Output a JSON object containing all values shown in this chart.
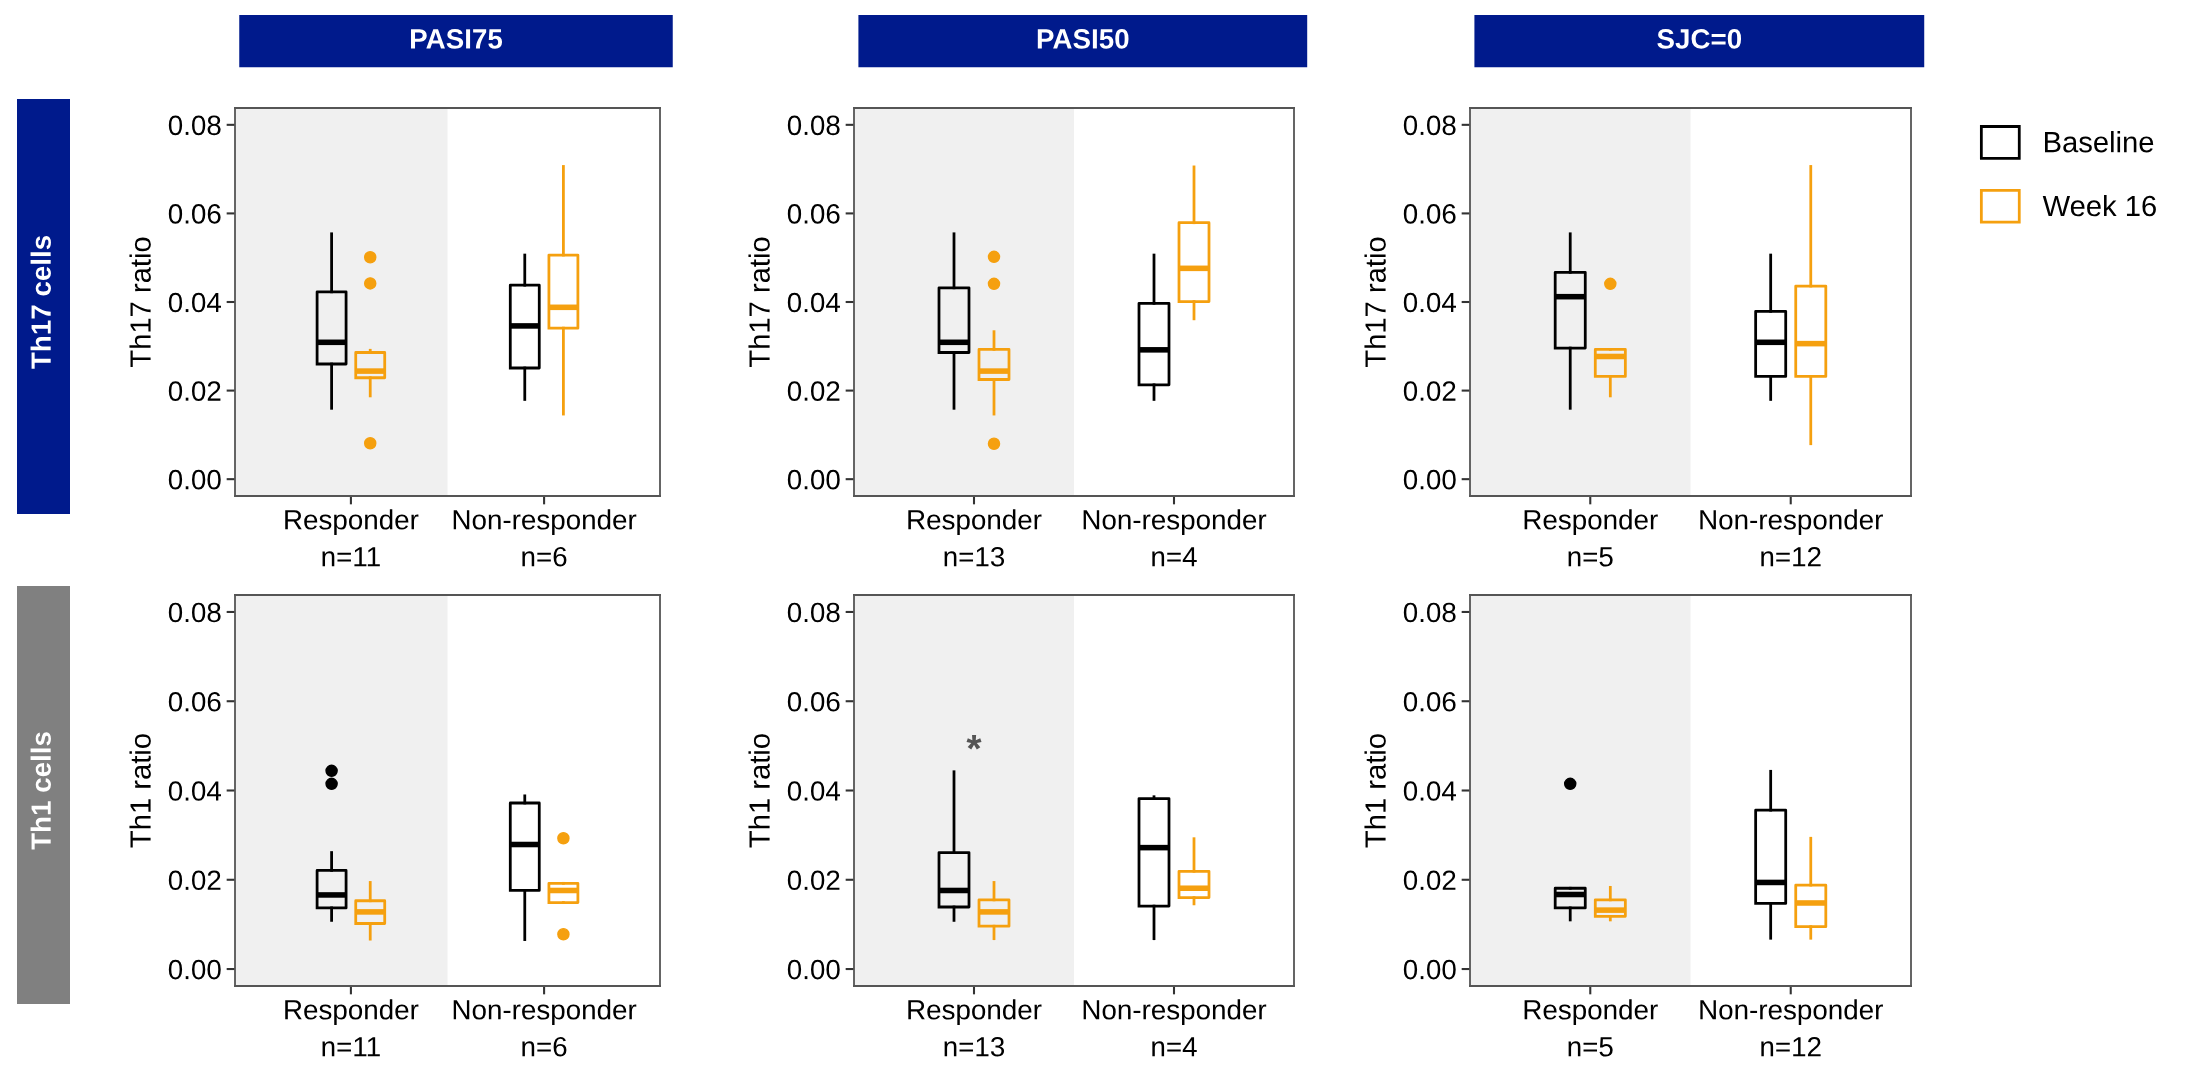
{
  "chart_data": [
    {
      "type": "box",
      "title": "PASI75",
      "ylabel": "Th17 ratio",
      "categories": [
        "Responder\nn=11",
        "Non-responder\nn=6"
      ],
      "ylim": [
        -0.0038,
        0.0838
      ],
      "yticks": [
        {
          "value": 0,
          "label": "0.00"
        },
        {
          "value": 0.02,
          "label": "0.02"
        },
        {
          "value": 0.04,
          "label": "0.04"
        },
        {
          "value": 0.06,
          "label": "0.06"
        },
        {
          "value": 0.08,
          "label": "0.08"
        }
      ],
      "grid": false,
      "legend": false,
      "annotations": [
        "Th17 cells"
      ],
      "series": [
        {
          "color": "#000000",
          "boxes": [
            {
              "low": 0.016,
              "q1": 0.026,
              "median": 0.0309,
              "q3": 0.0423,
              "high": 0.0554
            },
            {
              "low": 0.018,
              "q1": 0.0251,
              "median": 0.0346,
              "q3": 0.0438,
              "high": 0.0506
            }
          ]
        },
        {
          "color": "#f5a00f",
          "boxes": [
            {
              "low": 0.0188,
              "q1": 0.0229,
              "median": 0.0244,
              "q3": 0.0286,
              "high": 0.0291,
              "outliers": [
                0.0501,
                0.0442,
                0.0081
              ]
            },
            {
              "low": 0.0147,
              "q1": 0.0341,
              "median": 0.0388,
              "q3": 0.0506,
              "high": 0.0706
            }
          ]
        }
      ]
    },
    {
      "type": "box",
      "title": "PASI50",
      "ylabel": "Th17 ratio",
      "categories": [
        "Responder\nn=13",
        "Non-responder\nn=4"
      ],
      "ylim": [
        -0.0038,
        0.0838
      ],
      "yticks": [
        {
          "value": 0,
          "label": "0.00"
        },
        {
          "value": 0.02,
          "label": "0.02"
        },
        {
          "value": 0.04,
          "label": "0.04"
        },
        {
          "value": 0.06,
          "label": "0.06"
        },
        {
          "value": 0.08,
          "label": "0.08"
        }
      ],
      "grid": false,
      "legend": false,
      "series": [
        {
          "color": "#000000",
          "boxes": [
            {
              "low": 0.016,
              "q1": 0.0286,
              "median": 0.0309,
              "q3": 0.0432,
              "high": 0.0554
            },
            {
              "low": 0.018,
              "q1": 0.0213,
              "median": 0.0292,
              "q3": 0.0397,
              "high": 0.0506
            }
          ]
        },
        {
          "color": "#f5a00f",
          "boxes": [
            {
              "low": 0.0147,
              "q1": 0.0225,
              "median": 0.0244,
              "q3": 0.0293,
              "high": 0.0333,
              "outliers": [
                0.0502,
                0.0441,
                0.008
              ]
            },
            {
              "low": 0.0362,
              "q1": 0.0401,
              "median": 0.0476,
              "q3": 0.0579,
              "high": 0.0705
            }
          ]
        }
      ]
    },
    {
      "type": "box",
      "title": "SJC=0",
      "ylabel": "Th17 ratio",
      "categories": [
        "Responder\nn=5",
        "Non-responder\nn=12"
      ],
      "ylim": [
        -0.0038,
        0.0838
      ],
      "yticks": [
        {
          "value": 0,
          "label": "0.00"
        },
        {
          "value": 0.02,
          "label": "0.02"
        },
        {
          "value": 0.04,
          "label": "0.04"
        },
        {
          "value": 0.06,
          "label": "0.06"
        },
        {
          "value": 0.08,
          "label": "0.08"
        }
      ],
      "grid": false,
      "legend": "right",
      "series": [
        {
          "name": "Baseline",
          "color": "#000000",
          "boxes": [
            {
              "low": 0.016,
              "q1": 0.0296,
              "median": 0.0412,
              "q3": 0.0467,
              "high": 0.0554
            },
            {
              "low": 0.018,
              "q1": 0.0232,
              "median": 0.0309,
              "q3": 0.0379,
              "high": 0.0506
            }
          ]
        },
        {
          "name": "Week 16",
          "color": "#f5a00f",
          "boxes": [
            {
              "low": 0.0188,
              "q1": 0.0232,
              "median": 0.0277,
              "q3": 0.0293,
              "high": 0.0293,
              "outliers": [
                0.0441
              ]
            },
            {
              "low": 0.008,
              "q1": 0.0232,
              "median": 0.0306,
              "q3": 0.0436,
              "high": 0.0706
            }
          ]
        }
      ]
    },
    {
      "type": "box",
      "ylabel": "Th1 ratio",
      "categories": [
        "Responder\nn=11",
        "Non-responder\nn=6"
      ],
      "ylim": [
        -0.0038,
        0.0838
      ],
      "yticks": [
        {
          "value": 0,
          "label": "0.00"
        },
        {
          "value": 0.02,
          "label": "0.02"
        },
        {
          "value": 0.04,
          "label": "0.04"
        },
        {
          "value": 0.06,
          "label": "0.06"
        },
        {
          "value": 0.08,
          "label": "0.08"
        }
      ],
      "grid": false,
      "legend": false,
      "annotations": [
        "Th1 cells"
      ],
      "series": [
        {
          "color": "#000000",
          "boxes": [
            {
              "low": 0.0109,
              "q1": 0.0137,
              "median": 0.0166,
              "q3": 0.0221,
              "high": 0.0261,
              "outliers": [
                0.0444,
                0.0415
              ]
            },
            {
              "low": 0.0066,
              "q1": 0.0176,
              "median": 0.0279,
              "q3": 0.0372,
              "high": 0.0388
            }
          ]
        },
        {
          "color": "#f5a00f",
          "boxes": [
            {
              "low": 0.0067,
              "q1": 0.0102,
              "median": 0.0128,
              "q3": 0.0153,
              "high": 0.0194
            },
            {
              "low": 0.0149,
              "q1": 0.0149,
              "median": 0.0176,
              "q3": 0.0192,
              "high": 0.0192,
              "outliers": [
                0.0293,
                0.0078
              ]
            }
          ]
        }
      ]
    },
    {
      "type": "box",
      "ylabel": "Th1 ratio",
      "categories": [
        "Responder\nn=13",
        "Non-responder\nn=4"
      ],
      "ylim": [
        -0.0038,
        0.0838
      ],
      "yticks": [
        {
          "value": 0,
          "label": "0.00"
        },
        {
          "value": 0.02,
          "label": "0.02"
        },
        {
          "value": 0.04,
          "label": "0.04"
        },
        {
          "value": 0.06,
          "label": "0.06"
        },
        {
          "value": 0.08,
          "label": "0.08"
        }
      ],
      "grid": false,
      "legend": false,
      "annotations": [
        "*"
      ],
      "series": [
        {
          "color": "#000000",
          "boxes": [
            {
              "low": 0.0109,
              "q1": 0.0139,
              "median": 0.0176,
              "q3": 0.0261,
              "high": 0.0442
            },
            {
              "low": 0.0068,
              "q1": 0.0141,
              "median": 0.0272,
              "q3": 0.0382,
              "high": 0.0386
            }
          ]
        },
        {
          "color": "#f5a00f",
          "boxes": [
            {
              "low": 0.0068,
              "q1": 0.0096,
              "median": 0.0128,
              "q3": 0.0155,
              "high": 0.0194
            },
            {
              "low": 0.0146,
              "q1": 0.016,
              "median": 0.0181,
              "q3": 0.0219,
              "high": 0.0292
            }
          ]
        }
      ]
    },
    {
      "type": "box",
      "ylabel": "Th1 ratio",
      "categories": [
        "Responder\nn=5",
        "Non-responder\nn=12"
      ],
      "ylim": [
        -0.0038,
        0.0838
      ],
      "yticks": [
        {
          "value": 0,
          "label": "0.00"
        },
        {
          "value": 0.02,
          "label": "0.02"
        },
        {
          "value": 0.04,
          "label": "0.04"
        },
        {
          "value": 0.06,
          "label": "0.06"
        },
        {
          "value": 0.08,
          "label": "0.08"
        }
      ],
      "grid": false,
      "legend": false,
      "series": [
        {
          "color": "#000000",
          "boxes": [
            {
              "low": 0.011,
              "q1": 0.0137,
              "median": 0.0167,
              "q3": 0.0181,
              "high": 0.0181,
              "outliers": [
                0.0415
              ]
            },
            {
              "low": 0.0069,
              "q1": 0.0147,
              "median": 0.0194,
              "q3": 0.0356,
              "high": 0.0443
            }
          ]
        },
        {
          "color": "#f5a00f",
          "boxes": [
            {
              "low": 0.011,
              "q1": 0.0118,
              "median": 0.0132,
              "q3": 0.0155,
              "high": 0.0183
            },
            {
              "low": 0.0069,
              "q1": 0.0095,
              "median": 0.0148,
              "q3": 0.0188,
              "high": 0.0293
            }
          ]
        }
      ]
    }
  ]
}
